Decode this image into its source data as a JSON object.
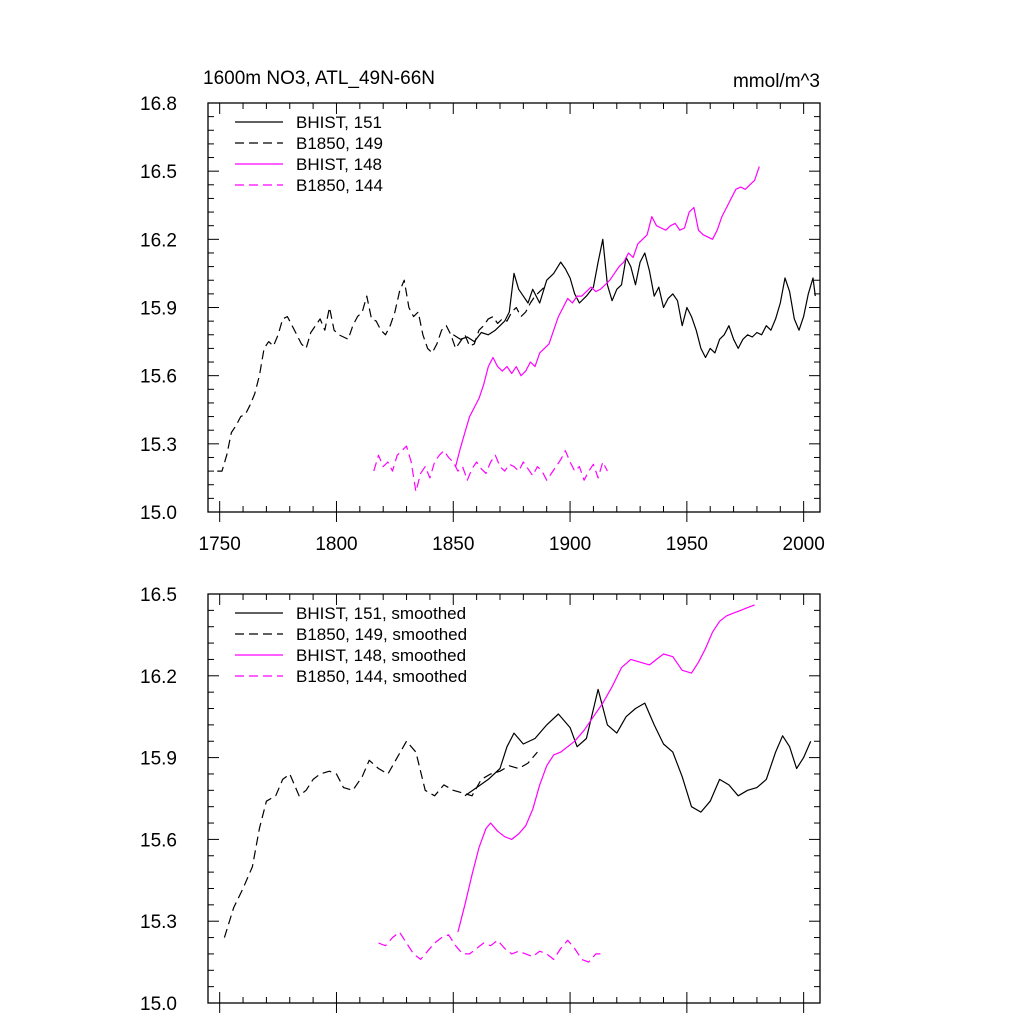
{
  "figure": {
    "title_left": "1600m NO3, ATL_49N-66N",
    "title_right": "mmol/m^3"
  },
  "colors": {
    "black": "#000000",
    "magenta": "#ff00ff"
  },
  "chart_data": [
    {
      "type": "line",
      "xlim": [
        1745,
        2007
      ],
      "ylim": [
        15.0,
        16.8
      ],
      "xticks": [
        1750,
        1800,
        1850,
        1900,
        1950,
        2000
      ],
      "xtick_labels": [
        "1750",
        "1800",
        "1850",
        "1900",
        "1950",
        "2000"
      ],
      "yticks": [
        15.0,
        15.3,
        15.6,
        15.9,
        16.2,
        16.5,
        16.8
      ],
      "ytick_labels": [
        "15.0",
        "15.3",
        "15.6",
        "15.9",
        "16.2",
        "16.5",
        "16.8"
      ],
      "legend_position": "top-left",
      "grid": false,
      "series": [
        {
          "name": "BHIST, 151",
          "color": "#000000",
          "dash": "solid",
          "x": [
            1850,
            1853,
            1856,
            1859,
            1862,
            1865,
            1868,
            1870,
            1872,
            1874,
            1876,
            1878,
            1880,
            1882,
            1884,
            1887,
            1890,
            1893,
            1896,
            1898,
            1900,
            1902,
            1904,
            1907,
            1910,
            1912,
            1914,
            1916,
            1918,
            1920,
            1922,
            1924,
            1926,
            1928,
            1930,
            1932,
            1934,
            1936,
            1938,
            1940,
            1942,
            1944,
            1946,
            1948,
            1950,
            1952,
            1954,
            1956,
            1958,
            1960,
            1962,
            1964,
            1966,
            1968,
            1970,
            1972,
            1974,
            1976,
            1978,
            1980,
            1982,
            1984,
            1986,
            1988,
            1990,
            1992,
            1994,
            1996,
            1998,
            2000,
            2002,
            2004,
            2005
          ],
          "y": [
            15.78,
            15.76,
            15.77,
            15.75,
            15.79,
            15.78,
            15.8,
            15.82,
            15.84,
            15.88,
            16.05,
            15.98,
            15.95,
            15.92,
            15.98,
            15.92,
            16.02,
            16.05,
            16.1,
            16.07,
            16.03,
            15.96,
            15.92,
            15.95,
            15.99,
            16.1,
            16.2,
            16.0,
            15.93,
            15.98,
            16.0,
            16.12,
            16.08,
            16.0,
            16.1,
            16.14,
            16.06,
            15.95,
            15.99,
            15.9,
            15.94,
            15.96,
            15.93,
            15.82,
            15.9,
            15.86,
            15.8,
            15.72,
            15.68,
            15.72,
            15.7,
            15.76,
            15.78,
            15.82,
            15.76,
            15.72,
            15.76,
            15.78,
            15.77,
            15.79,
            15.78,
            15.82,
            15.8,
            15.85,
            15.92,
            16.03,
            15.97,
            15.85,
            15.8,
            15.86,
            15.96,
            16.03,
            15.95
          ]
        },
        {
          "name": "B1850, 149",
          "color": "#000000",
          "dash": "dashed",
          "x": [
            1749,
            1751,
            1753,
            1755,
            1757,
            1759,
            1761,
            1763,
            1765,
            1767,
            1769,
            1771,
            1773,
            1775,
            1777,
            1779,
            1781,
            1783,
            1785,
            1787,
            1789,
            1791,
            1793,
            1795,
            1797,
            1799,
            1801,
            1803,
            1805,
            1807,
            1809,
            1811,
            1813,
            1815,
            1817,
            1819,
            1821,
            1823,
            1825,
            1827,
            1829,
            1831,
            1833,
            1835,
            1837,
            1839,
            1841,
            1843,
            1845,
            1847,
            1849,
            1851,
            1853,
            1855,
            1857,
            1859,
            1861,
            1863,
            1865,
            1867,
            1869,
            1871,
            1873,
            1875,
            1877,
            1879,
            1881,
            1883,
            1885,
            1887,
            1889
          ],
          "y": [
            15.18,
            15.18,
            15.25,
            15.35,
            15.38,
            15.42,
            15.43,
            15.47,
            15.52,
            15.6,
            15.72,
            15.75,
            15.73,
            15.78,
            15.85,
            15.86,
            15.82,
            15.78,
            15.74,
            15.72,
            15.79,
            15.82,
            15.85,
            15.8,
            15.9,
            15.8,
            15.78,
            15.77,
            15.76,
            15.82,
            15.86,
            15.88,
            15.95,
            15.85,
            15.84,
            15.8,
            15.78,
            15.82,
            15.88,
            15.97,
            16.02,
            15.9,
            15.86,
            15.88,
            15.78,
            15.72,
            15.7,
            15.74,
            15.8,
            15.82,
            15.78,
            15.72,
            15.75,
            15.78,
            15.73,
            15.74,
            15.8,
            15.82,
            15.85,
            15.86,
            15.83,
            15.85,
            15.84,
            15.88,
            15.9,
            15.86,
            15.88,
            15.92,
            15.95,
            15.97,
            15.99
          ]
        },
        {
          "name": "BHIST, 148",
          "color": "#ff00ff",
          "dash": "solid",
          "x": [
            1851,
            1853,
            1855,
            1857,
            1859,
            1861,
            1863,
            1865,
            1867,
            1869,
            1871,
            1873,
            1875,
            1877,
            1879,
            1881,
            1883,
            1885,
            1887,
            1889,
            1891,
            1893,
            1895,
            1897,
            1899,
            1901,
            1903,
            1905,
            1907,
            1909,
            1911,
            1913,
            1915,
            1917,
            1919,
            1921,
            1923,
            1925,
            1927,
            1929,
            1931,
            1933,
            1935,
            1937,
            1939,
            1941,
            1943,
            1945,
            1947,
            1949,
            1951,
            1953,
            1955,
            1957,
            1959,
            1961,
            1963,
            1965,
            1967,
            1969,
            1971,
            1973,
            1975,
            1977,
            1979,
            1981
          ],
          "y": [
            15.2,
            15.28,
            15.35,
            15.42,
            15.46,
            15.5,
            15.56,
            15.64,
            15.68,
            15.64,
            15.62,
            15.64,
            15.61,
            15.64,
            15.6,
            15.62,
            15.66,
            15.64,
            15.7,
            15.72,
            15.74,
            15.8,
            15.86,
            15.9,
            15.94,
            15.92,
            15.95,
            15.95,
            15.97,
            15.99,
            15.97,
            15.98,
            16.0,
            16.02,
            16.05,
            16.08,
            16.1,
            16.14,
            16.12,
            16.18,
            16.2,
            16.22,
            16.3,
            16.26,
            16.25,
            16.24,
            16.26,
            16.27,
            16.24,
            16.25,
            16.32,
            16.34,
            16.24,
            16.22,
            16.21,
            16.2,
            16.24,
            16.3,
            16.34,
            16.38,
            16.42,
            16.43,
            16.42,
            16.44,
            16.46,
            16.52
          ]
        },
        {
          "name": "B1850, 144",
          "color": "#ff00ff",
          "dash": "dashed",
          "x": [
            1816,
            1818,
            1820,
            1822,
            1824,
            1826,
            1828,
            1830,
            1832,
            1834,
            1836,
            1838,
            1840,
            1842,
            1844,
            1846,
            1848,
            1850,
            1852,
            1854,
            1856,
            1858,
            1860,
            1862,
            1864,
            1866,
            1868,
            1870,
            1872,
            1874,
            1876,
            1878,
            1880,
            1882,
            1884,
            1886,
            1888,
            1890,
            1892,
            1894,
            1896,
            1898,
            1900,
            1902,
            1904,
            1906,
            1908,
            1910,
            1912,
            1914,
            1916
          ],
          "y": [
            15.18,
            15.25,
            15.2,
            15.22,
            15.18,
            15.25,
            15.27,
            15.29,
            15.22,
            15.09,
            15.17,
            15.2,
            15.15,
            15.22,
            15.25,
            15.27,
            15.24,
            15.22,
            15.18,
            15.2,
            15.14,
            15.19,
            15.22,
            15.19,
            15.17,
            15.22,
            15.25,
            15.2,
            15.18,
            15.21,
            15.2,
            15.18,
            15.22,
            15.19,
            15.16,
            15.2,
            15.18,
            15.14,
            15.17,
            15.2,
            15.23,
            15.27,
            15.22,
            15.18,
            15.2,
            15.14,
            15.18,
            15.21,
            15.15,
            15.22,
            15.18
          ]
        }
      ]
    },
    {
      "type": "line",
      "xlim": [
        1745,
        2007
      ],
      "ylim": [
        15.0,
        16.5
      ],
      "xticks": [
        1750,
        1800,
        1850,
        1900,
        1950,
        2000
      ],
      "xtick_labels": [],
      "yticks": [
        15.0,
        15.3,
        15.6,
        15.9,
        16.2,
        16.5
      ],
      "ytick_labels": [
        "15.0",
        "15.3",
        "15.6",
        "15.9",
        "16.2",
        "16.5"
      ],
      "legend_position": "top-left",
      "grid": false,
      "series": [
        {
          "name": "BHIST, 151, smoothed",
          "color": "#000000",
          "dash": "solid",
          "x": [
            1855,
            1860,
            1865,
            1870,
            1873,
            1876,
            1880,
            1885,
            1890,
            1895,
            1900,
            1903,
            1907,
            1912,
            1916,
            1920,
            1924,
            1928,
            1932,
            1936,
            1940,
            1944,
            1948,
            1952,
            1956,
            1960,
            1964,
            1968,
            1972,
            1976,
            1980,
            1984,
            1988,
            1991,
            1994,
            1997,
            2000,
            2003
          ],
          "y": [
            15.76,
            15.79,
            15.82,
            15.86,
            15.94,
            15.99,
            15.95,
            15.97,
            16.02,
            16.06,
            16.01,
            15.94,
            15.97,
            16.15,
            16.02,
            15.99,
            16.05,
            16.08,
            16.1,
            16.02,
            15.95,
            15.92,
            15.83,
            15.72,
            15.7,
            15.74,
            15.82,
            15.8,
            15.76,
            15.78,
            15.79,
            15.82,
            15.92,
            15.98,
            15.94,
            15.86,
            15.9,
            15.96
          ]
        },
        {
          "name": "B1850, 149, smoothed",
          "color": "#000000",
          "dash": "dashed",
          "x": [
            1752,
            1756,
            1760,
            1764,
            1767,
            1770,
            1774,
            1777,
            1780,
            1784,
            1787,
            1790,
            1793,
            1797,
            1800,
            1803,
            1807,
            1811,
            1814,
            1818,
            1822,
            1826,
            1830,
            1834,
            1838,
            1842,
            1846,
            1850,
            1854,
            1858,
            1862,
            1866,
            1870,
            1874,
            1878,
            1882,
            1886
          ],
          "y": [
            15.24,
            15.35,
            15.42,
            15.5,
            15.64,
            15.74,
            15.76,
            15.82,
            15.84,
            15.76,
            15.78,
            15.82,
            15.84,
            15.85,
            15.84,
            15.79,
            15.78,
            15.83,
            15.89,
            15.86,
            15.84,
            15.9,
            15.96,
            15.92,
            15.78,
            15.76,
            15.8,
            15.78,
            15.77,
            15.76,
            15.82,
            15.84,
            15.85,
            15.87,
            15.86,
            15.88,
            15.92
          ]
        },
        {
          "name": "BHIST, 148, smoothed",
          "color": "#ff00ff",
          "dash": "solid",
          "x": [
            1852,
            1855,
            1858,
            1861,
            1864,
            1866,
            1869,
            1872,
            1875,
            1878,
            1881,
            1884,
            1887,
            1890,
            1893,
            1896,
            1899,
            1902,
            1906,
            1910,
            1914,
            1918,
            1922,
            1926,
            1930,
            1934,
            1937,
            1940,
            1944,
            1948,
            1952,
            1955,
            1958,
            1961,
            1964,
            1967,
            1970,
            1973,
            1976,
            1979
          ],
          "y": [
            15.26,
            15.36,
            15.47,
            15.57,
            15.64,
            15.66,
            15.63,
            15.61,
            15.6,
            15.62,
            15.65,
            15.71,
            15.8,
            15.87,
            15.91,
            15.92,
            15.94,
            15.96,
            16.0,
            16.05,
            16.1,
            16.16,
            16.23,
            16.26,
            16.25,
            16.24,
            16.26,
            16.28,
            16.27,
            16.22,
            16.21,
            16.25,
            16.3,
            16.36,
            16.4,
            16.42,
            16.43,
            16.44,
            16.45,
            16.46
          ]
        },
        {
          "name": "B1850, 144, smoothed",
          "color": "#ff00ff",
          "dash": "dashed",
          "x": [
            1818,
            1821,
            1824,
            1827,
            1830,
            1833,
            1836,
            1839,
            1842,
            1845,
            1848,
            1851,
            1854,
            1857,
            1860,
            1863,
            1866,
            1869,
            1872,
            1875,
            1878,
            1881,
            1884,
            1887,
            1890,
            1893,
            1896,
            1899,
            1902,
            1905,
            1908,
            1911,
            1913
          ],
          "y": [
            15.22,
            15.21,
            15.24,
            15.26,
            15.22,
            15.18,
            15.16,
            15.19,
            15.22,
            15.24,
            15.25,
            15.21,
            15.18,
            15.18,
            15.2,
            15.22,
            15.21,
            15.23,
            15.2,
            15.18,
            15.19,
            15.18,
            15.17,
            15.19,
            15.18,
            15.16,
            15.2,
            15.23,
            15.2,
            15.16,
            15.15,
            15.18,
            15.18
          ]
        }
      ]
    }
  ]
}
